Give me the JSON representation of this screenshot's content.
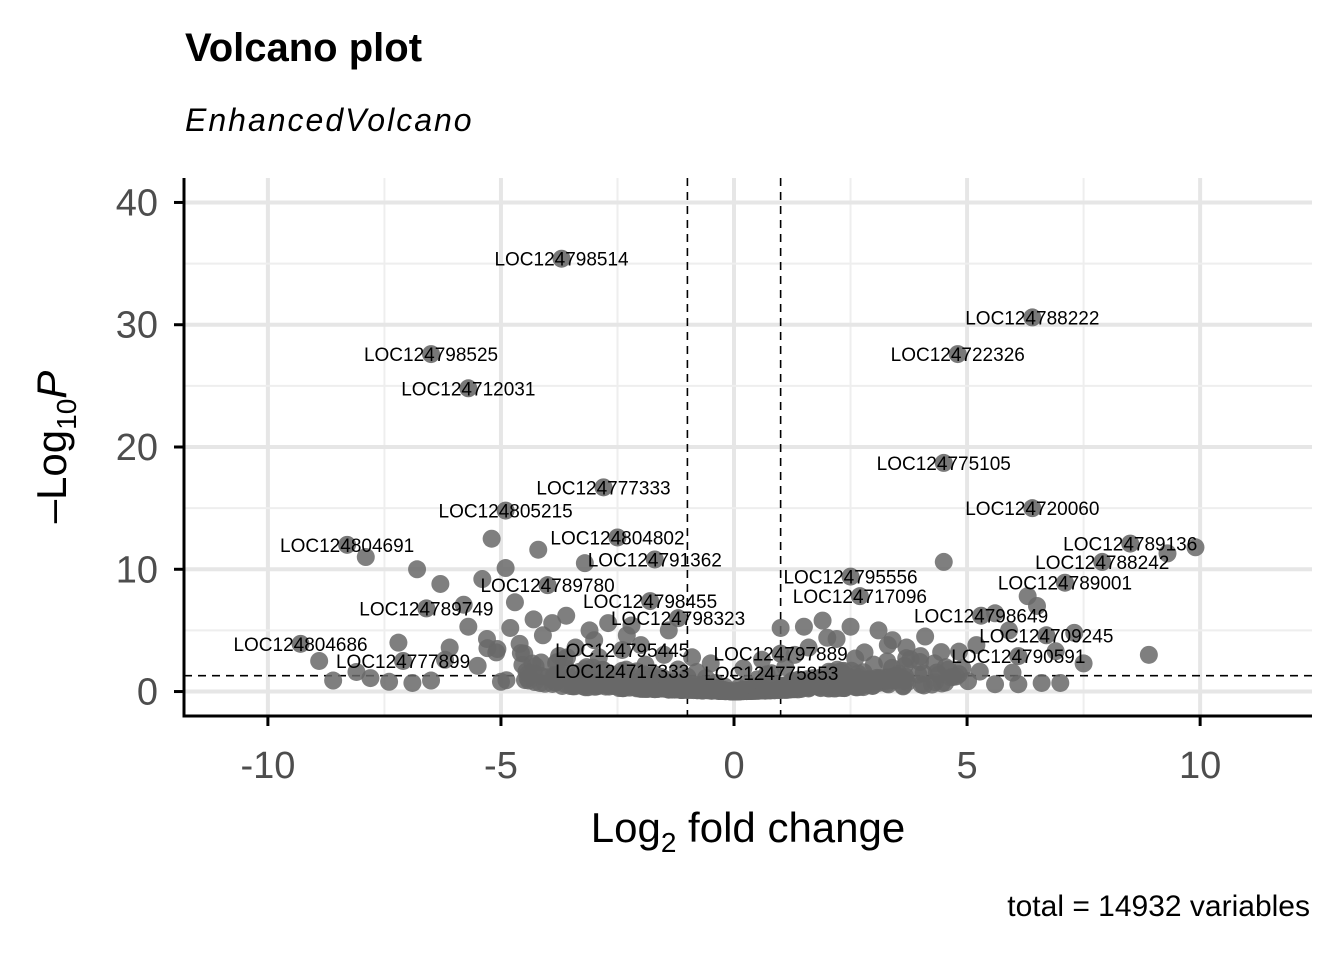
{
  "chart_data": {
    "type": "scatter",
    "title": "Volcano plot",
    "subtitle": "EnhancedVolcano",
    "caption": "total = 14932 variables",
    "xlabel_main": "Log",
    "xlabel_sub": "2",
    "xlabel_rest": " fold change",
    "ylabel_prefix": "–Log",
    "ylabel_sub": "10",
    "ylabel_var": "P",
    "xlim": [
      -11.8,
      12.4
    ],
    "ylim": [
      -2,
      42
    ],
    "x_ticks": [
      -10,
      -5,
      0,
      5,
      10
    ],
    "x_tick_labels": [
      "-10",
      "-5",
      "0",
      "5",
      "10"
    ],
    "y_ticks": [
      0,
      10,
      20,
      30,
      40
    ],
    "y_tick_labels": [
      "0",
      "10",
      "20",
      "30",
      "40"
    ],
    "grid": true,
    "fc_cutoff": 1,
    "p_cutoff": 1.3,
    "point_color": "#696969",
    "labeled_points": [
      {
        "label": "LOC124798514",
        "x": -3.7,
        "y": 35.4
      },
      {
        "label": "LOC124788222",
        "x": 6.4,
        "y": 30.6
      },
      {
        "label": "LOC124798525",
        "x": -6.5,
        "y": 27.6
      },
      {
        "label": "LOC124722326",
        "x": 4.8,
        "y": 27.6
      },
      {
        "label": "LOC124712031",
        "x": -5.7,
        "y": 24.8
      },
      {
        "label": "LOC124775105",
        "x": 4.5,
        "y": 18.7
      },
      {
        "label": "LOC124777333",
        "x": -2.8,
        "y": 16.7
      },
      {
        "label": "LOC124720060",
        "x": 6.4,
        "y": 15.0
      },
      {
        "label": "LOC124805215",
        "x": -4.9,
        "y": 14.8
      },
      {
        "label": "LOC124804802",
        "x": -2.5,
        "y": 12.6
      },
      {
        "label": "LOC124804691",
        "x": -8.3,
        "y": 12.0
      },
      {
        "label": "LOC124789136",
        "x": 8.5,
        "y": 12.1
      },
      {
        "label": "LOC124791362",
        "x": -1.7,
        "y": 10.8
      },
      {
        "label": "LOC124788242",
        "x": 7.9,
        "y": 10.6
      },
      {
        "label": "LOC124789780",
        "x": -4.0,
        "y": 8.7
      },
      {
        "label": "LOC124795556",
        "x": 2.5,
        "y": 9.4
      },
      {
        "label": "LOC124789001",
        "x": 7.1,
        "y": 8.9
      },
      {
        "label": "LOC124717096",
        "x": 2.7,
        "y": 7.8
      },
      {
        "label": "LOC124798455",
        "x": -1.8,
        "y": 7.4
      },
      {
        "label": "LOC124789749",
        "x": -6.6,
        "y": 6.8
      },
      {
        "label": "LOC124798649",
        "x": 5.3,
        "y": 6.2
      },
      {
        "label": "LOC124798323",
        "x": -1.2,
        "y": 6.0
      },
      {
        "label": "LOC124709245",
        "x": 6.7,
        "y": 4.6
      },
      {
        "label": "LOC124804686",
        "x": -9.3,
        "y": 3.9
      },
      {
        "label": "LOC124795445",
        "x": -2.4,
        "y": 3.4
      },
      {
        "label": "LOC124797889",
        "x": 1.0,
        "y": 3.1
      },
      {
        "label": "LOC124790591",
        "x": 6.1,
        "y": 2.9
      },
      {
        "label": "LOC124777899",
        "x": -7.1,
        "y": 2.5
      },
      {
        "label": "LOC124717333",
        "x": -2.4,
        "y": 1.7
      },
      {
        "label": "LOC124775853",
        "x": 0.8,
        "y": 1.5
      }
    ],
    "other_points": [
      [
        -5.2,
        12.5
      ],
      [
        -4.2,
        11.6
      ],
      [
        -3.2,
        10.5
      ],
      [
        -4.9,
        10.1
      ],
      [
        -6.8,
        10.0
      ],
      [
        -6.3,
        8.8
      ],
      [
        -5.4,
        9.2
      ],
      [
        -4.7,
        7.3
      ],
      [
        -5.8,
        7.1
      ],
      [
        -7.9,
        11.0
      ],
      [
        -4.3,
        5.9
      ],
      [
        -3.6,
        6.2
      ],
      [
        -5.7,
        5.3
      ],
      [
        -4.8,
        5.2
      ],
      [
        -3.9,
        5.6
      ],
      [
        -3.1,
        5.0
      ],
      [
        -2.7,
        5.6
      ],
      [
        -2.2,
        5.4
      ],
      [
        -1.4,
        5.0
      ],
      [
        -5.3,
        4.3
      ],
      [
        -4.1,
        4.6
      ],
      [
        -6.1,
        3.6
      ],
      [
        -7.2,
        4.0
      ],
      [
        -8.9,
        2.5
      ],
      [
        -8.1,
        1.6
      ],
      [
        -7.8,
        1.1
      ],
      [
        -7.4,
        0.8
      ],
      [
        -8.6,
        0.9
      ],
      [
        -6.9,
        0.7
      ],
      [
        -6.2,
        2.6
      ],
      [
        -5.5,
        2.1
      ],
      [
        -4.5,
        3.1
      ],
      [
        -3.4,
        3.6
      ],
      [
        -2.0,
        3.8
      ],
      [
        -1.5,
        3.0
      ],
      [
        -3.8,
        2.4
      ],
      [
        -2.9,
        2.8
      ],
      [
        -1.9,
        2.2
      ],
      [
        -1.2,
        1.8
      ],
      [
        -0.8,
        1.6
      ],
      [
        -0.6,
        1.1
      ],
      [
        -0.4,
        0.7
      ],
      [
        -0.2,
        0.4
      ],
      [
        0.1,
        0.3
      ],
      [
        0.3,
        0.6
      ],
      [
        0.5,
        1.0
      ],
      [
        0.7,
        1.4
      ],
      [
        1.1,
        2.0
      ],
      [
        1.3,
        3.0
      ],
      [
        1.6,
        3.6
      ],
      [
        1.9,
        5.8
      ],
      [
        2.2,
        4.3
      ],
      [
        2.5,
        5.3
      ],
      [
        2.8,
        3.2
      ],
      [
        3.1,
        5.0
      ],
      [
        3.4,
        4.2
      ],
      [
        3.7,
        3.6
      ],
      [
        4.0,
        2.9
      ],
      [
        4.3,
        2.3
      ],
      [
        4.6,
        1.8
      ],
      [
        1.0,
        5.2
      ],
      [
        1.5,
        5.3
      ],
      [
        2.0,
        4.4
      ],
      [
        3.0,
        2.2
      ],
      [
        4.5,
        10.6
      ],
      [
        5.6,
        6.4
      ],
      [
        5.9,
        5.0
      ],
      [
        6.3,
        7.8
      ],
      [
        6.5,
        7.0
      ],
      [
        7.3,
        4.8
      ],
      [
        6.9,
        3.3
      ],
      [
        7.5,
        2.3
      ],
      [
        5.6,
        0.6
      ],
      [
        6.1,
        0.6
      ],
      [
        6.6,
        0.7
      ],
      [
        7.0,
        0.7
      ],
      [
        8.9,
        3.0
      ],
      [
        9.3,
        11.3
      ],
      [
        9.9,
        11.8
      ],
      [
        5.2,
        3.8
      ],
      [
        4.9,
        1.9
      ],
      [
        3.5,
        1.2
      ],
      [
        2.3,
        1.5
      ],
      [
        1.7,
        1.1
      ],
      [
        -1.0,
        1.2
      ],
      [
        -1.7,
        1.4
      ],
      [
        -2.6,
        1.3
      ],
      [
        -3.3,
        1.0
      ],
      [
        -4.4,
        0.9
      ],
      [
        -5.0,
        0.8
      ],
      [
        -6.5,
        0.9
      ],
      [
        -0.9,
        2.8
      ],
      [
        -0.5,
        2.3
      ],
      [
        0.2,
        1.9
      ],
      [
        0.6,
        2.6
      ],
      [
        -2.3,
        4.6
      ],
      [
        -3.0,
        4.2
      ],
      [
        -4.6,
        3.9
      ],
      [
        -5.1,
        3.2
      ],
      [
        2.6,
        2.7
      ],
      [
        3.3,
        3.8
      ],
      [
        4.1,
        4.5
      ]
    ]
  }
}
